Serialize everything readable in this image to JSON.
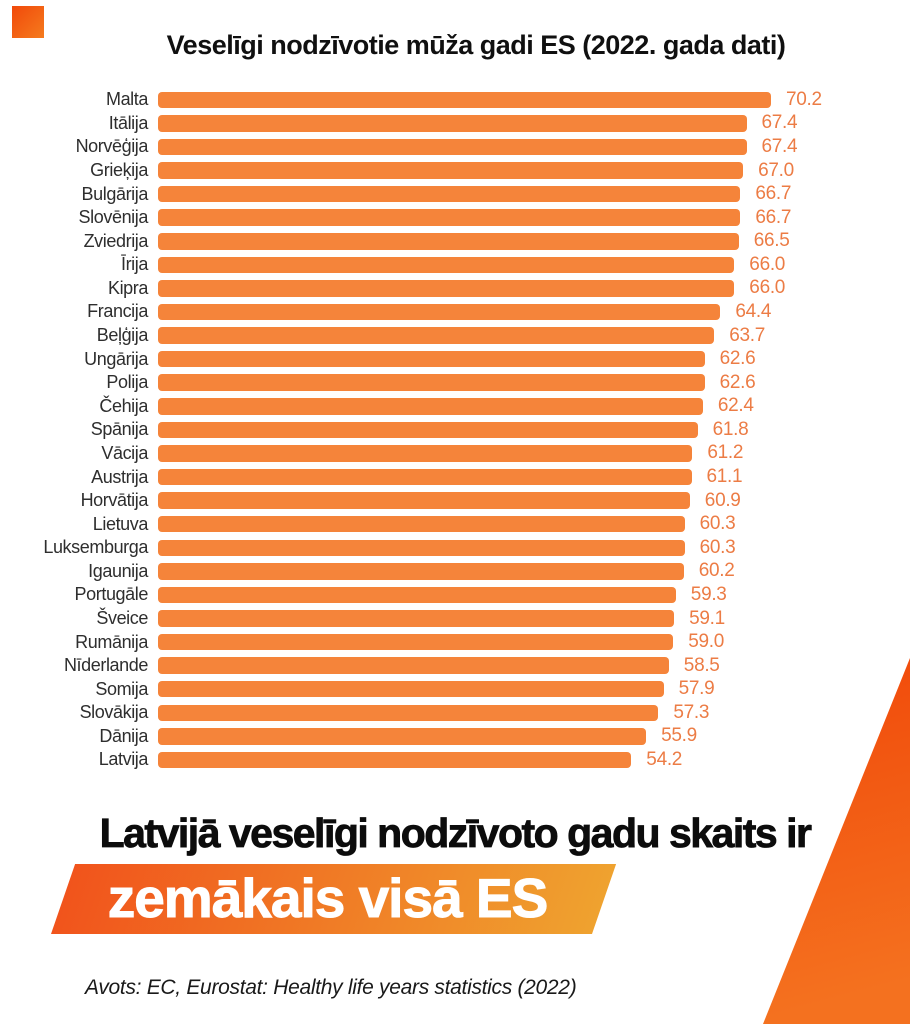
{
  "title": "Veselīgi nodzīvotie mūža gadi ES (2022. gada dati)",
  "chart_data": {
    "type": "bar",
    "orientation": "horizontal",
    "title": "Veselīgi nodzīvotie mūža gadi ES (2022. gada dati)",
    "categories": [
      "Malta",
      "Itālija",
      "Norvēģija",
      "Grieķija",
      "Bulgārija",
      "Slovēnija",
      "Zviedrija",
      "Īrija",
      "Kipra",
      "Francija",
      "Beļģija",
      "Ungārija",
      "Polija",
      "Čehija",
      "Spānija",
      "Vācija",
      "Austrija",
      "Horvātija",
      "Lietuva",
      "Luksemburga",
      "Igaunija",
      "Portugāle",
      "Šveice",
      "Rumānija",
      "Nīderlande",
      "Somija",
      "Slovākija",
      "Dānija",
      "Latvija"
    ],
    "values": [
      70.2,
      67.4,
      67.4,
      67.0,
      66.7,
      66.7,
      66.5,
      66.0,
      66.0,
      64.4,
      63.7,
      62.6,
      62.6,
      62.4,
      61.8,
      61.2,
      61.1,
      60.9,
      60.3,
      60.3,
      60.2,
      59.3,
      59.1,
      59.0,
      58.5,
      57.9,
      57.3,
      55.9,
      54.2
    ],
    "value_labels": [
      "70.2",
      "67.4",
      "67.4",
      "67.0",
      "66.7",
      "66.7",
      "66.5",
      "66.0",
      "66.0",
      "64.4",
      "63.7",
      "62.6",
      "62.6",
      "62.4",
      "61.8",
      "61.2",
      "61.1",
      "60.9",
      "60.3",
      "60.3",
      "60.2",
      "59.3",
      "59.1",
      "59.0",
      "58.5",
      "57.9",
      "57.3",
      "55.9",
      "54.2"
    ],
    "xlim": [
      0,
      70.2
    ],
    "grid": false,
    "legend": false,
    "bar_color": "#f5843a",
    "value_label_color": "#ec7c45"
  },
  "headline": {
    "text": "Latvijā veselīgi nodzīvoto gadu skaits ir",
    "banner_text": "zemākais visā ES"
  },
  "source": {
    "text": "Avots: EC, Eurostat: Healthy life years statistics (2022)"
  },
  "colors": {
    "logo_gradient_start": "#f1490a",
    "logo_gradient_end": "#f57b1e",
    "banner_gradient_start": "#f1541c",
    "banner_gradient_end": "#efa22f",
    "wedge_gradient_start": "#f1490a",
    "wedge_gradient_end": "#f4711f",
    "bar": "#f5843a",
    "value_label": "#ec7c45"
  }
}
